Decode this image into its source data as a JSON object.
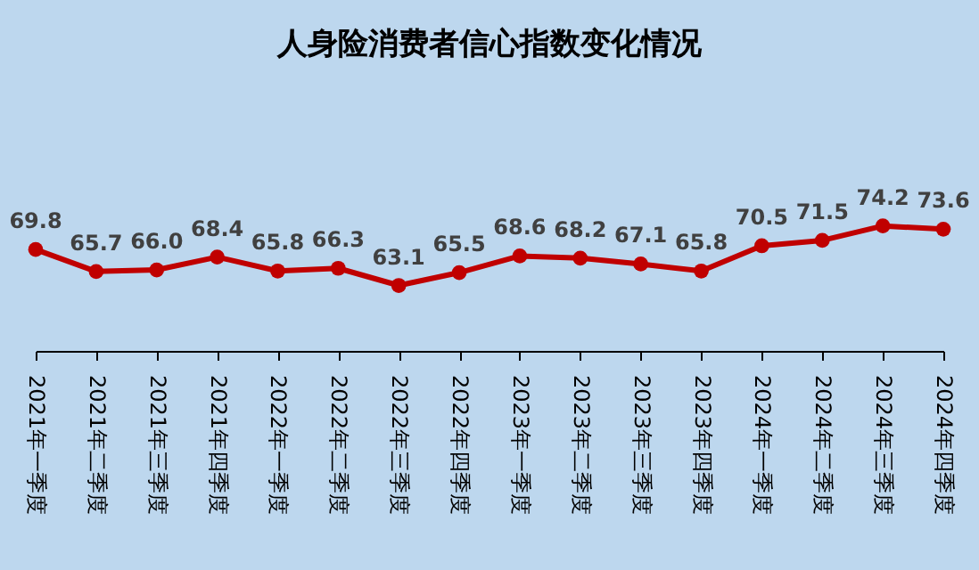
{
  "chart_data": {
    "type": "line",
    "title": "人身险消费者信心指数变化情况",
    "categories": [
      "2021年一季度",
      "2021年二季度",
      "2021年三季度",
      "2021年四季度",
      "2022年一季度",
      "2022年二季度",
      "2022年三季度",
      "2022年四季度",
      "2023年一季度",
      "2023年二季度",
      "2023年三季度",
      "2023年四季度",
      "2024年一季度",
      "2024年二季度",
      "2024年三季度",
      "2024年四季度"
    ],
    "series": [
      {
        "color": "#c00000",
        "values": [
          69.8,
          65.7,
          66.0,
          68.4,
          65.8,
          66.3,
          63.1,
          65.5,
          68.6,
          68.2,
          67.1,
          65.8,
          70.5,
          71.5,
          74.2,
          73.6
        ],
        "value_labels": [
          "69.8",
          "65.7",
          "66.0",
          "68.4",
          "65.8",
          "66.3",
          "63.1",
          "65.5",
          "68.6",
          "68.2",
          "67.1",
          "65.8",
          "70.5",
          "71.5",
          "74.2",
          "73.6"
        ]
      }
    ],
    "marker": "circle",
    "line_style": "solid",
    "tick_labels": "x"
  }
}
